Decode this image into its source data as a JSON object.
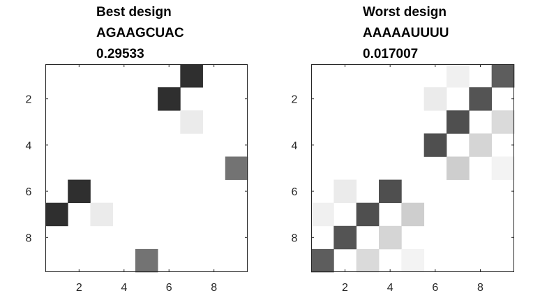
{
  "chart_data": [
    {
      "type": "heatmap",
      "title": [
        "Best design",
        "AGAAGCUAC",
        "0.29533"
      ],
      "xlabel": "",
      "ylabel": "",
      "x_range": [
        1,
        9
      ],
      "y_range": [
        1,
        9
      ],
      "y_direction": "top-to-bottom",
      "xticks": [
        2,
        4,
        6,
        8
      ],
      "yticks": [
        2,
        4,
        6,
        8
      ],
      "grid": false,
      "colormap": "white-to-dark-gray",
      "value_range": [
        0,
        1
      ],
      "matrix": [
        [
          0,
          0,
          0,
          0,
          0,
          0,
          0.85,
          0,
          0
        ],
        [
          0,
          0,
          0,
          0,
          0,
          0.85,
          0,
          0,
          0
        ],
        [
          0,
          0,
          0,
          0,
          0,
          0,
          0.08,
          0,
          0
        ],
        [
          0,
          0,
          0,
          0,
          0,
          0,
          0,
          0,
          0
        ],
        [
          0,
          0,
          0,
          0,
          0,
          0,
          0,
          0,
          0.57
        ],
        [
          0,
          0.85,
          0,
          0,
          0,
          0,
          0,
          0,
          0
        ],
        [
          0.85,
          0,
          0.08,
          0,
          0,
          0,
          0,
          0,
          0
        ],
        [
          0,
          0,
          0,
          0,
          0,
          0,
          0,
          0,
          0
        ],
        [
          0,
          0,
          0,
          0,
          0.57,
          0,
          0,
          0,
          0
        ]
      ]
    },
    {
      "type": "heatmap",
      "title": [
        "Worst design",
        "AAAAAUUUU",
        "0.017007"
      ],
      "xlabel": "",
      "ylabel": "",
      "x_range": [
        1,
        9
      ],
      "y_range": [
        1,
        9
      ],
      "y_direction": "top-to-bottom",
      "xticks": [
        2,
        4,
        6,
        8
      ],
      "yticks": [
        2,
        4,
        6,
        8
      ],
      "grid": false,
      "colormap": "white-to-dark-gray",
      "value_range": [
        0,
        1
      ],
      "matrix": [
        [
          0,
          0,
          0,
          0,
          0,
          0,
          0.06,
          0,
          0.66
        ],
        [
          0,
          0,
          0,
          0,
          0,
          0.08,
          0,
          0.7,
          0
        ],
        [
          0,
          0,
          0,
          0,
          0,
          0,
          0.72,
          0,
          0.15
        ],
        [
          0,
          0,
          0,
          0,
          0,
          0.72,
          0,
          0.17,
          0
        ],
        [
          0,
          0,
          0,
          0,
          0,
          0,
          0.2,
          0,
          0.05
        ],
        [
          0,
          0.08,
          0,
          0.72,
          0,
          0,
          0,
          0,
          0
        ],
        [
          0.06,
          0,
          0.72,
          0,
          0.2,
          0,
          0,
          0,
          0
        ],
        [
          0,
          0.7,
          0,
          0.17,
          0,
          0,
          0,
          0,
          0
        ],
        [
          0.66,
          0,
          0.15,
          0,
          0.05,
          0,
          0,
          0,
          0
        ]
      ]
    }
  ]
}
